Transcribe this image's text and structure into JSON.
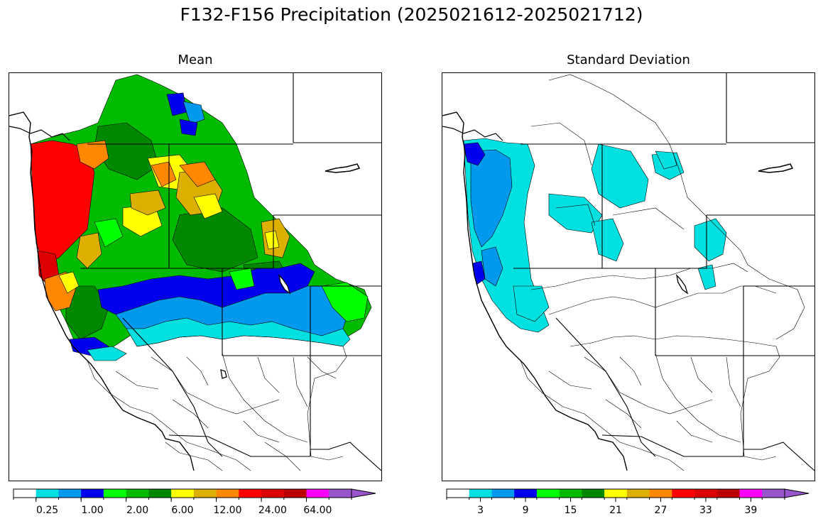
{
  "figure": {
    "title": "F132-F156 Precipitation (2025021612-2025021712)"
  },
  "panels": [
    {
      "title": "Mean",
      "colorbar": {
        "colors": [
          "#ffffff",
          "#00e0e0",
          "#0099ee",
          "#0000ee",
          "#00ff00",
          "#00bb00",
          "#008800",
          "#ffff00",
          "#ddb000",
          "#ff8800",
          "#ff0000",
          "#dd0000",
          "#bb0000",
          "#ff00ff",
          "#9955cc"
        ],
        "tick_labels": [
          "0.25",
          "1.00",
          "2.00",
          "6.00",
          "12.00",
          "24.00",
          "64.00"
        ]
      }
    },
    {
      "title": "Standard Deviation",
      "colorbar": {
        "colors": [
          "#ffffff",
          "#00e0e0",
          "#0099ee",
          "#0000ee",
          "#00ff00",
          "#00bb00",
          "#008800",
          "#ffff00",
          "#ddb000",
          "#ff8800",
          "#ff0000",
          "#dd0000",
          "#bb0000",
          "#ff00ff",
          "#9955cc"
        ],
        "tick_labels": [
          "3",
          "9",
          "15",
          "21",
          "27",
          "33",
          "39"
        ]
      }
    }
  ]
}
